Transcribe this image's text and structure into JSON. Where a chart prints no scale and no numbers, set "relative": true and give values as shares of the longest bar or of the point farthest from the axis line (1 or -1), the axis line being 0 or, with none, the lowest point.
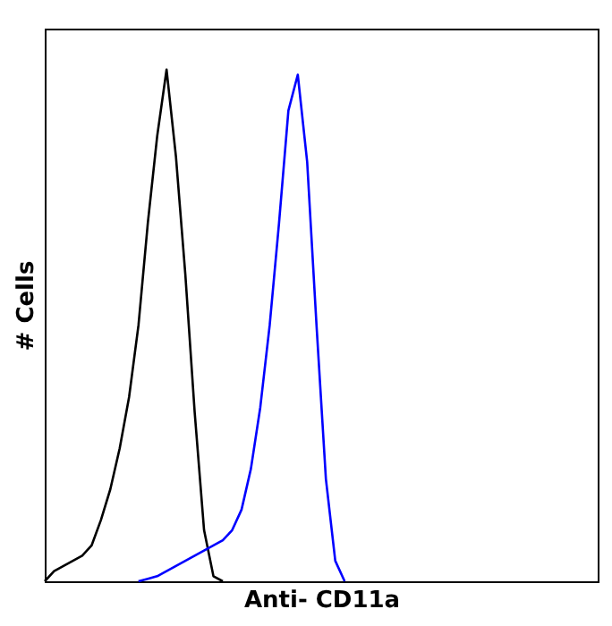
{
  "chart_data": {
    "type": "line",
    "relative": true,
    "xlabel": "Anti- CD11a",
    "ylabel": "# Cells",
    "grid": false,
    "tick_labels": false,
    "marker": "none",
    "line_style": "solid",
    "categories": [
      null,
      null,
      null,
      null,
      null,
      null,
      null,
      null,
      null,
      null,
      null,
      null,
      null,
      null,
      null,
      null,
      null,
      null,
      null,
      null,
      null,
      null,
      null,
      null,
      null,
      null,
      null,
      null,
      null,
      null,
      null,
      null,
      null,
      null,
      null,
      null,
      null,
      null,
      null,
      null,
      null,
      null,
      null,
      null,
      null,
      null,
      null,
      null,
      null,
      null,
      null,
      null,
      null,
      null,
      null,
      null,
      null,
      null,
      null,
      null
    ],
    "series": [
      {
        "color": "#000000",
        "values": [
          0,
          0.02,
          0.03,
          0.04,
          0.05,
          0.07,
          0.12,
          0.18,
          0.26,
          0.36,
          0.5,
          0.7,
          0.87,
          1.0,
          0.83,
          0.6,
          0.33,
          0.1,
          0.01,
          0,
          null,
          null,
          null,
          null,
          null,
          null,
          null,
          null,
          null,
          null,
          null,
          null,
          null,
          null,
          null,
          null,
          null,
          null,
          null,
          null,
          null,
          null,
          null,
          null,
          null,
          null,
          null,
          null,
          null,
          null,
          null,
          null,
          null,
          null,
          null,
          null,
          null,
          null,
          null,
          null
        ]
      },
      {
        "color": "#0000ff",
        "values": [
          null,
          null,
          null,
          null,
          null,
          null,
          null,
          null,
          null,
          null,
          0,
          0.005,
          0.01,
          0.02,
          0.03,
          0.04,
          0.05,
          0.06,
          0.07,
          0.08,
          0.1,
          0.14,
          0.22,
          0.34,
          0.5,
          0.7,
          0.92,
          0.99,
          0.82,
          0.5,
          0.2,
          0.04,
          0,
          null,
          null,
          null,
          null,
          null,
          null,
          null,
          null,
          null,
          null,
          null,
          null,
          null,
          null,
          null,
          null,
          null,
          null,
          null,
          null,
          null,
          null,
          null,
          null,
          null,
          null,
          null
        ]
      }
    ]
  }
}
